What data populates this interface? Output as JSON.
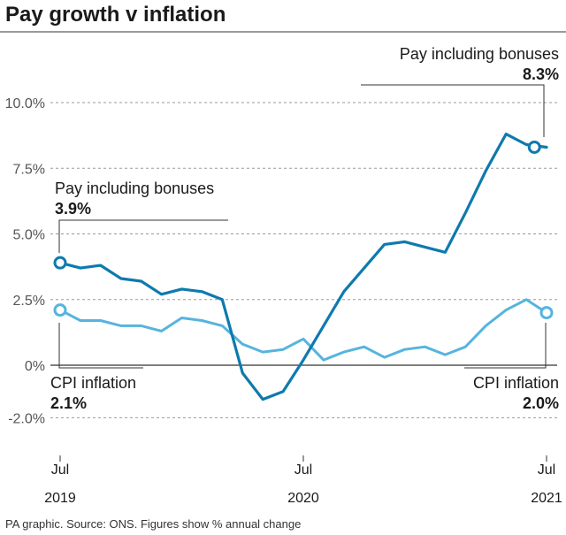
{
  "chart_data": {
    "type": "line",
    "title": "Pay growth v inflation",
    "ylim": [
      -2.0,
      10.0
    ],
    "y_ticks": [
      {
        "value": 10.0,
        "label": "10.0%"
      },
      {
        "value": 7.5,
        "label": "7.5%"
      },
      {
        "value": 5.0,
        "label": "5.0%"
      },
      {
        "value": 2.5,
        "label": "2.5%"
      },
      {
        "value": 0,
        "label": "0%"
      },
      {
        "value": -2.0,
        "label": "-2.0%"
      }
    ],
    "x_ticks": [
      {
        "month": 0,
        "label": "Jul",
        "year": "2019"
      },
      {
        "month": 12,
        "label": "Jul",
        "year": "2020"
      },
      {
        "month": 24,
        "label": "Jul",
        "year": "2021"
      }
    ],
    "grid": true,
    "colors": {
      "pay": "#0e7aae",
      "cpi": "#56b4de",
      "grid": "#9a9a9a",
      "axis": "#333333"
    },
    "series": [
      {
        "key": "pay",
        "name": "Pay including bonuses",
        "x": [
          0,
          1,
          2,
          3,
          4,
          5,
          6,
          7,
          8,
          9,
          10,
          11,
          12,
          13,
          14,
          15,
          16,
          17,
          18,
          19,
          20,
          21,
          22,
          23,
          24
        ],
        "values": [
          3.9,
          3.7,
          3.8,
          3.3,
          3.2,
          2.7,
          2.9,
          2.8,
          2.5,
          -0.3,
          -1.3,
          -1.0,
          0.2,
          1.5,
          2.8,
          3.7,
          4.6,
          4.7,
          4.5,
          4.3,
          5.8,
          7.4,
          8.8,
          8.4,
          8.3
        ]
      },
      {
        "key": "cpi",
        "name": "CPI inflation",
        "x": [
          0,
          1,
          2,
          3,
          4,
          5,
          6,
          7,
          8,
          9,
          10,
          11,
          12,
          13,
          14,
          15,
          16,
          17,
          18,
          19,
          20,
          21,
          22,
          23,
          24
        ],
        "values": [
          2.1,
          1.7,
          1.7,
          1.5,
          1.5,
          1.3,
          1.8,
          1.7,
          1.5,
          0.8,
          0.5,
          0.6,
          1.0,
          0.2,
          0.5,
          0.7,
          0.3,
          0.6,
          0.7,
          0.4,
          0.7,
          1.5,
          2.1,
          2.5,
          2.0
        ]
      }
    ],
    "annotations": {
      "pay_start": {
        "label": "Pay including bonuses",
        "value": "3.9%"
      },
      "pay_end": {
        "label": "Pay including bonuses",
        "value": "8.3%"
      },
      "cpi_start": {
        "label": "CPI inflation",
        "value": "2.1%"
      },
      "cpi_end": {
        "label": "CPI inflation",
        "value": "2.0%"
      }
    },
    "footnote": "PA graphic. Source: ONS. Figures show % annual change"
  }
}
